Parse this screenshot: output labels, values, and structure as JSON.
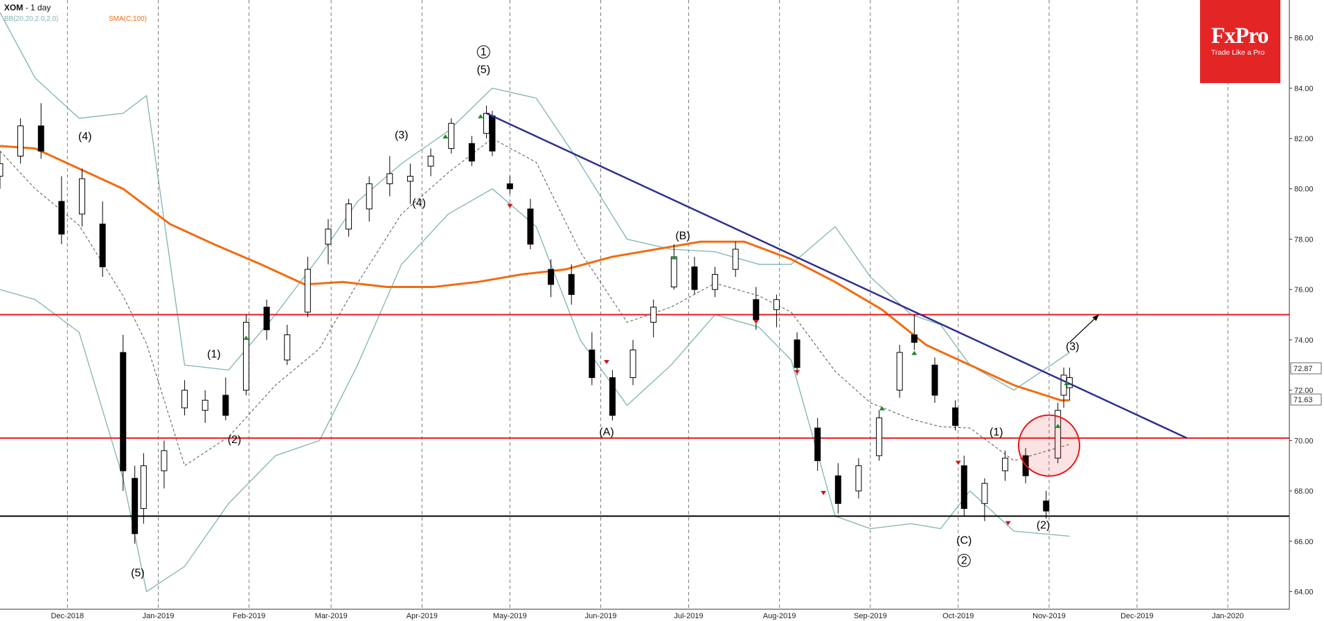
{
  "header": {
    "symbol": "XOM",
    "timeframe": "- 1 day",
    "bb_label": "BB(20,20,2.0,2.0)",
    "sma_label": "SMA(C,100)"
  },
  "logo": {
    "brand": "FxPro",
    "tagline": "Trade Like a Pro"
  },
  "colors": {
    "background": "#ffffff",
    "grid": "#444444",
    "bollinger": "#7fb2b2",
    "bollinger_mid": "#555555",
    "sma": "#f26b0f",
    "trendline": "#2e2f8f",
    "horizontal_level": "#e8161b",
    "support": "#000000",
    "up_arrow": "#1a8c2a",
    "down_arrow": "#c8181d",
    "logo_bg": "#e32526"
  },
  "chart_data": {
    "type": "candlestick",
    "symbol": "XOM",
    "timeframe": "1 day",
    "y_axis": {
      "ticks": [
        "86.00",
        "84.00",
        "82.00",
        "80.00",
        "78.00",
        "76.00",
        "74.00",
        "72.00",
        "70.00",
        "68.00",
        "66.00",
        "64.00"
      ],
      "range": [
        63.3,
        87.5
      ]
    },
    "x_axis": {
      "ticks": [
        "Dec-2018",
        "Jan-2019",
        "Feb-2019",
        "Mar-2019",
        "Apr-2019",
        "May-2019",
        "Jun-2019",
        "Jul-2019",
        "Aug-2019",
        "Sep-2019",
        "Oct-2019",
        "Nov-2019",
        "Dec-2019",
        "Jan-2020"
      ],
      "range": [
        "2018-11-08",
        "2020-01-22"
      ]
    },
    "price_labels": [
      "72.87",
      "71.63"
    ],
    "horizontal_levels": [
      {
        "price": 75.0,
        "color": "red"
      },
      {
        "price": 70.1,
        "color": "red"
      },
      {
        "price": 67.0,
        "color": "black"
      }
    ],
    "trendline": {
      "from": {
        "date": "2019-04-23",
        "price": 83.0
      },
      "to": {
        "date": "2019-12-18",
        "price": 70.1
      }
    },
    "projection_arrow": {
      "from": {
        "date": "2019-11-08",
        "price": 73.9
      },
      "to": {
        "date": "2019-11-18",
        "price": 75.0
      }
    },
    "highlight_circle": {
      "date": "2019-11-01",
      "price": 69.8
    },
    "sma_100": [
      [
        "2018-11-08",
        81.7
      ],
      [
        "2018-11-20",
        81.6
      ],
      [
        "2018-12-05",
        80.8
      ],
      [
        "2018-12-20",
        80.0
      ],
      [
        "2019-01-05",
        78.6
      ],
      [
        "2019-01-20",
        77.8
      ],
      [
        "2019-02-05",
        77.0
      ],
      [
        "2019-02-20",
        76.2
      ],
      [
        "2019-03-05",
        76.3
      ],
      [
        "2019-03-20",
        76.1
      ],
      [
        "2019-04-05",
        76.1
      ],
      [
        "2019-04-20",
        76.3
      ],
      [
        "2019-05-05",
        76.6
      ],
      [
        "2019-05-20",
        76.8
      ],
      [
        "2019-06-05",
        77.3
      ],
      [
        "2019-06-20",
        77.6
      ],
      [
        "2019-07-05",
        77.9
      ],
      [
        "2019-07-20",
        77.9
      ],
      [
        "2019-08-05",
        77.2
      ],
      [
        "2019-08-20",
        76.3
      ],
      [
        "2019-09-05",
        75.2
      ],
      [
        "2019-09-20",
        73.8
      ],
      [
        "2019-10-05",
        73.0
      ],
      [
        "2019-10-20",
        72.2
      ],
      [
        "2019-11-05",
        71.6
      ],
      [
        "2019-11-08",
        71.6
      ]
    ],
    "bollinger_upper": [
      [
        "2018-11-08",
        87.0
      ],
      [
        "2018-11-20",
        84.4
      ],
      [
        "2018-12-05",
        82.8
      ],
      [
        "2018-12-20",
        83.0
      ],
      [
        "2018-12-28",
        83.7
      ],
      [
        "2019-01-10",
        73.0
      ],
      [
        "2019-01-25",
        72.8
      ],
      [
        "2019-02-10",
        75.0
      ],
      [
        "2019-02-25",
        77.3
      ],
      [
        "2019-03-10",
        79.5
      ],
      [
        "2019-03-25",
        81.0
      ],
      [
        "2019-04-10",
        82.3
      ],
      [
        "2019-04-25",
        84.0
      ],
      [
        "2019-05-10",
        83.6
      ],
      [
        "2019-05-25",
        81.0
      ],
      [
        "2019-06-10",
        78.0
      ],
      [
        "2019-06-25",
        77.6
      ],
      [
        "2019-07-10",
        77.5
      ],
      [
        "2019-07-25",
        77.0
      ],
      [
        "2019-08-05",
        77.0
      ],
      [
        "2019-08-20",
        78.5
      ],
      [
        "2019-09-01",
        76.5
      ],
      [
        "2019-09-15",
        75.0
      ],
      [
        "2019-09-25",
        74.6
      ],
      [
        "2019-10-05",
        73.0
      ],
      [
        "2019-10-20",
        72.0
      ],
      [
        "2019-11-08",
        73.5
      ]
    ],
    "bollinger_lower": [
      [
        "2018-11-08",
        76.0
      ],
      [
        "2018-11-20",
        75.6
      ],
      [
        "2018-12-05",
        74.3
      ],
      [
        "2018-12-20",
        68.5
      ],
      [
        "2018-12-28",
        64.0
      ],
      [
        "2019-01-10",
        65.0
      ],
      [
        "2019-01-25",
        67.5
      ],
      [
        "2019-02-10",
        69.4
      ],
      [
        "2019-02-25",
        70.0
      ],
      [
        "2019-03-10",
        73.0
      ],
      [
        "2019-03-25",
        77.0
      ],
      [
        "2019-04-10",
        79.0
      ],
      [
        "2019-04-25",
        80.0
      ],
      [
        "2019-05-10",
        78.5
      ],
      [
        "2019-05-25",
        74.0
      ],
      [
        "2019-06-10",
        71.4
      ],
      [
        "2019-06-25",
        73.0
      ],
      [
        "2019-07-10",
        75.0
      ],
      [
        "2019-07-25",
        74.5
      ],
      [
        "2019-08-05",
        73.2
      ],
      [
        "2019-08-20",
        67.0
      ],
      [
        "2019-09-01",
        66.5
      ],
      [
        "2019-09-15",
        66.7
      ],
      [
        "2019-09-25",
        66.5
      ],
      [
        "2019-10-05",
        68.0
      ],
      [
        "2019-10-20",
        66.4
      ],
      [
        "2019-11-08",
        66.2
      ]
    ],
    "candles": [
      {
        "d": "2018-11-08",
        "o": 80.5,
        "h": 81.5,
        "l": 80.0,
        "c": 81.0
      },
      {
        "d": "2018-11-15",
        "o": 81.3,
        "h": 82.8,
        "l": 81.0,
        "c": 82.5
      },
      {
        "d": "2018-11-22",
        "o": 82.5,
        "h": 83.4,
        "l": 81.2,
        "c": 81.5
      },
      {
        "d": "2018-11-29",
        "o": 79.5,
        "h": 80.5,
        "l": 77.8,
        "c": 78.2
      },
      {
        "d": "2018-12-06",
        "o": 79.0,
        "h": 80.8,
        "l": 78.5,
        "c": 80.4
      },
      {
        "d": "2018-12-13",
        "o": 78.6,
        "h": 79.5,
        "l": 76.5,
        "c": 76.9
      },
      {
        "d": "2018-12-20",
        "o": 73.5,
        "h": 74.2,
        "l": 68.0,
        "c": 68.8
      },
      {
        "d": "2018-12-24",
        "o": 68.5,
        "h": 69.0,
        "l": 65.9,
        "c": 66.3
      },
      {
        "d": "2018-12-27",
        "o": 67.3,
        "h": 69.5,
        "l": 66.7,
        "c": 69.0
      },
      {
        "d": "2019-01-03",
        "o": 68.8,
        "h": 70.0,
        "l": 68.1,
        "c": 69.6
      },
      {
        "d": "2019-01-10",
        "o": 71.3,
        "h": 72.4,
        "l": 71.0,
        "c": 72.0
      },
      {
        "d": "2019-01-17",
        "o": 71.2,
        "h": 72.0,
        "l": 70.7,
        "c": 71.6
      },
      {
        "d": "2019-01-24",
        "o": 71.8,
        "h": 72.5,
        "l": 70.8,
        "c": 71.0
      },
      {
        "d": "2019-01-31",
        "o": 72.0,
        "h": 75.0,
        "l": 71.8,
        "c": 74.7
      },
      {
        "d": "2019-02-07",
        "o": 75.3,
        "h": 75.6,
        "l": 74.0,
        "c": 74.4
      },
      {
        "d": "2019-02-14",
        "o": 73.2,
        "h": 74.6,
        "l": 73.0,
        "c": 74.2
      },
      {
        "d": "2019-02-21",
        "o": 75.1,
        "h": 77.3,
        "l": 74.9,
        "c": 76.8
      },
      {
        "d": "2019-02-28",
        "o": 77.8,
        "h": 78.8,
        "l": 77.0,
        "c": 78.4
      },
      {
        "d": "2019-03-07",
        "o": 78.4,
        "h": 79.6,
        "l": 78.1,
        "c": 79.4
      },
      {
        "d": "2019-03-14",
        "o": 79.2,
        "h": 80.5,
        "l": 78.7,
        "c": 80.2
      },
      {
        "d": "2019-03-21",
        "o": 80.2,
        "h": 81.3,
        "l": 79.7,
        "c": 80.6
      },
      {
        "d": "2019-03-28",
        "o": 80.3,
        "h": 81.0,
        "l": 79.4,
        "c": 80.5
      },
      {
        "d": "2019-04-04",
        "o": 80.9,
        "h": 81.6,
        "l": 80.5,
        "c": 81.3
      },
      {
        "d": "2019-04-11",
        "o": 81.6,
        "h": 82.8,
        "l": 81.4,
        "c": 82.6
      },
      {
        "d": "2019-04-18",
        "o": 81.8,
        "h": 82.1,
        "l": 80.9,
        "c": 81.1
      },
      {
        "d": "2019-04-23",
        "o": 82.2,
        "h": 83.3,
        "l": 82.0,
        "c": 83.0
      },
      {
        "d": "2019-04-25",
        "o": 82.9,
        "h": 83.1,
        "l": 81.3,
        "c": 81.5
      },
      {
        "d": "2019-05-01",
        "o": 80.2,
        "h": 80.5,
        "l": 79.8,
        "c": 80.0
      },
      {
        "d": "2019-05-08",
        "o": 79.2,
        "h": 79.6,
        "l": 77.6,
        "c": 77.8
      },
      {
        "d": "2019-05-15",
        "o": 76.8,
        "h": 77.2,
        "l": 75.7,
        "c": 76.2
      },
      {
        "d": "2019-05-22",
        "o": 76.6,
        "h": 77.0,
        "l": 75.4,
        "c": 75.8
      },
      {
        "d": "2019-05-29",
        "o": 73.6,
        "h": 74.3,
        "l": 72.2,
        "c": 72.5
      },
      {
        "d": "2019-06-05",
        "o": 72.5,
        "h": 72.8,
        "l": 70.8,
        "c": 71.0
      },
      {
        "d": "2019-06-12",
        "o": 72.5,
        "h": 74.0,
        "l": 72.2,
        "c": 73.6
      },
      {
        "d": "2019-06-19",
        "o": 74.7,
        "h": 75.6,
        "l": 74.1,
        "c": 75.3
      },
      {
        "d": "2019-06-26",
        "o": 76.1,
        "h": 77.8,
        "l": 76.0,
        "c": 77.3
      },
      {
        "d": "2019-07-03",
        "o": 76.9,
        "h": 77.3,
        "l": 75.8,
        "c": 76.0
      },
      {
        "d": "2019-07-10",
        "o": 76.0,
        "h": 76.9,
        "l": 75.7,
        "c": 76.6
      },
      {
        "d": "2019-07-17",
        "o": 76.8,
        "h": 77.9,
        "l": 76.5,
        "c": 77.6
      },
      {
        "d": "2019-07-24",
        "o": 75.6,
        "h": 76.1,
        "l": 74.4,
        "c": 74.8
      },
      {
        "d": "2019-07-31",
        "o": 75.2,
        "h": 75.8,
        "l": 74.5,
        "c": 75.6
      },
      {
        "d": "2019-08-07",
        "o": 74.0,
        "h": 74.3,
        "l": 72.6,
        "c": 72.9
      },
      {
        "d": "2019-08-14",
        "o": 70.5,
        "h": 70.9,
        "l": 68.8,
        "c": 69.2
      },
      {
        "d": "2019-08-21",
        "o": 68.6,
        "h": 69.1,
        "l": 67.1,
        "c": 67.5
      },
      {
        "d": "2019-08-28",
        "o": 68.0,
        "h": 69.3,
        "l": 67.7,
        "c": 69.0
      },
      {
        "d": "2019-09-04",
        "o": 69.4,
        "h": 71.2,
        "l": 69.2,
        "c": 70.9
      },
      {
        "d": "2019-09-11",
        "o": 72.0,
        "h": 73.8,
        "l": 71.7,
        "c": 73.5
      },
      {
        "d": "2019-09-16",
        "o": 74.2,
        "h": 75.0,
        "l": 73.6,
        "c": 73.9
      },
      {
        "d": "2019-09-23",
        "o": 73.0,
        "h": 73.3,
        "l": 71.5,
        "c": 71.8
      },
      {
        "d": "2019-09-30",
        "o": 71.3,
        "h": 71.6,
        "l": 70.4,
        "c": 70.6
      },
      {
        "d": "2019-10-03",
        "o": 69.0,
        "h": 69.4,
        "l": 67.0,
        "c": 67.3
      },
      {
        "d": "2019-10-10",
        "o": 67.5,
        "h": 68.5,
        "l": 66.8,
        "c": 68.3
      },
      {
        "d": "2019-10-17",
        "o": 68.8,
        "h": 69.6,
        "l": 68.4,
        "c": 69.3
      },
      {
        "d": "2019-10-24",
        "o": 69.4,
        "h": 69.7,
        "l": 68.3,
        "c": 68.6
      },
      {
        "d": "2019-10-31",
        "o": 67.6,
        "h": 68.0,
        "l": 66.9,
        "c": 67.2
      },
      {
        "d": "2019-11-04",
        "o": 69.3,
        "h": 71.5,
        "l": 69.1,
        "c": 71.2
      },
      {
        "d": "2019-11-06",
        "o": 71.8,
        "h": 72.9,
        "l": 71.3,
        "c": 72.6
      },
      {
        "d": "2019-11-08",
        "o": 72.1,
        "h": 72.9,
        "l": 71.6,
        "c": 72.5
      }
    ],
    "signal_arrows": [
      {
        "d": "2019-01-31",
        "p": 74.0,
        "dir": "up"
      },
      {
        "d": "2019-04-09",
        "p": 82.0,
        "dir": "up"
      },
      {
        "d": "2019-04-21",
        "p": 82.8,
        "dir": "up"
      },
      {
        "d": "2019-05-01",
        "p": 79.4,
        "dir": "down"
      },
      {
        "d": "2019-06-03",
        "p": 73.2,
        "dir": "down"
      },
      {
        "d": "2019-06-26",
        "p": 77.2,
        "dir": "up"
      },
      {
        "d": "2019-07-24",
        "p": 74.8,
        "dir": "down"
      },
      {
        "d": "2019-08-07",
        "p": 72.8,
        "dir": "down"
      },
      {
        "d": "2019-08-16",
        "p": 68.0,
        "dir": "down"
      },
      {
        "d": "2019-09-05",
        "p": 71.2,
        "dir": "up"
      },
      {
        "d": "2019-09-16",
        "p": 73.4,
        "dir": "up"
      },
      {
        "d": "2019-10-01",
        "p": 69.2,
        "dir": "down"
      },
      {
        "d": "2019-10-18",
        "p": 66.8,
        "dir": "down"
      },
      {
        "d": "2019-11-04",
        "p": 70.5,
        "dir": "up"
      },
      {
        "d": "2019-11-07",
        "p": 72.2,
        "dir": "up"
      }
    ],
    "annotations": [
      {
        "text": "(4)",
        "d": "2018-12-07",
        "p": 81.95,
        "circled": false
      },
      {
        "text": "(5)",
        "d": "2018-12-25",
        "p": 64.6,
        "circled": false
      },
      {
        "text": "(1)",
        "d": "2019-01-20",
        "p": 73.3,
        "circled": false
      },
      {
        "text": "(2)",
        "d": "2019-01-27",
        "p": 69.9,
        "circled": false
      },
      {
        "text": "(3)",
        "d": "2019-03-25",
        "p": 82.0,
        "circled": false
      },
      {
        "text": "(4)",
        "d": "2019-03-31",
        "p": 79.3,
        "circled": false
      },
      {
        "text": "1",
        "d": "2019-04-22",
        "p": 85.3,
        "circled": true
      },
      {
        "text": "(5)",
        "d": "2019-04-22",
        "p": 84.6,
        "circled": false
      },
      {
        "text": "(A)",
        "d": "2019-06-03",
        "p": 70.2,
        "circled": false
      },
      {
        "text": "(B)",
        "d": "2019-06-29",
        "p": 78.0,
        "circled": false
      },
      {
        "text": "(1)",
        "d": "2019-10-14",
        "p": 70.2,
        "circled": false
      },
      {
        "text": "(C)",
        "d": "2019-10-03",
        "p": 65.9,
        "circled": false
      },
      {
        "text": "2",
        "d": "2019-10-03",
        "p": 65.1,
        "circled": true
      },
      {
        "text": "(2)",
        "d": "2019-10-30",
        "p": 66.5,
        "circled": false
      },
      {
        "text": "(3)",
        "d": "2019-11-09",
        "p": 73.6,
        "circled": false
      }
    ]
  }
}
